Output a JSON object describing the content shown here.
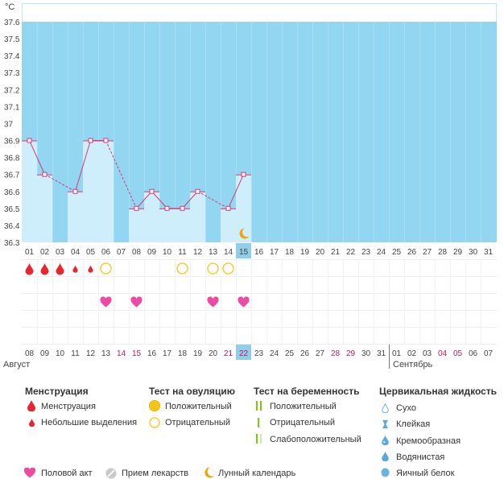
{
  "chart_data": {
    "type": "bar",
    "unit_label": "°C",
    "ylim": [
      36.3,
      37.6
    ],
    "yticks": [
      "36.3",
      "36.4",
      "36.5",
      "36.6",
      "36.7",
      "36.8",
      "36.9",
      "37",
      "37.1",
      "37.2",
      "37.3",
      "37.4",
      "37.5",
      "37.6"
    ],
    "days": [
      "01",
      "02",
      "03",
      "04",
      "05",
      "06",
      "07",
      "08",
      "09",
      "10",
      "11",
      "12",
      "13",
      "14",
      "15",
      "16",
      "17",
      "18",
      "19",
      "20",
      "21",
      "22",
      "23",
      "24",
      "25",
      "26",
      "27",
      "28",
      "29",
      "30",
      "31"
    ],
    "current_day": "15",
    "temperatures": [
      36.9,
      36.7,
      null,
      36.6,
      36.9,
      36.9,
      null,
      36.5,
      36.6,
      36.5,
      36.5,
      36.6,
      null,
      36.5,
      36.7
    ],
    "menstruation": [
      1,
      1,
      1,
      2,
      2
    ],
    "ovulation_test_negative": [
      6,
      11,
      13,
      14
    ],
    "intercourse": [
      6,
      8,
      13,
      15
    ],
    "lunar": [
      15
    ],
    "dates": [
      "08",
      "09",
      "10",
      "11",
      "12",
      "13",
      "14",
      "15",
      "16",
      "17",
      "18",
      "19",
      "20",
      "21",
      "22",
      "23",
      "24",
      "25",
      "26",
      "27",
      "28",
      "29",
      "30",
      "31",
      "01",
      "02",
      "03",
      "04",
      "05",
      "06",
      "07"
    ],
    "weekend_dates": [
      6,
      7,
      13,
      14,
      20,
      21,
      27,
      28
    ],
    "month_left": "Август",
    "month_right": "Сентябрь"
  },
  "legend": {
    "menstruation": {
      "title": "Менструация",
      "items": [
        "Менструация",
        "Небольшие выделения"
      ]
    },
    "ovulation": {
      "title": "Тест на овуляцию",
      "items": [
        "Положительный",
        "Отрицательный"
      ]
    },
    "pregnancy": {
      "title": "Тест на беременность",
      "items": [
        "Положительный",
        "Отрицательный",
        "Слабоположительный"
      ]
    },
    "cervical": {
      "title": "Цервикальная жидкость",
      "items": [
        "Сухо",
        "Клейкая",
        "Кремообразная",
        "Водянистая",
        "Яичный белок"
      ]
    },
    "bottom": [
      "Половой акт",
      "Прием лекарств",
      "Лунный календарь"
    ]
  },
  "colors": {
    "sky": "#92d6f2",
    "bar": "#cfeefb",
    "line": "#d63a73",
    "blood": "#e8262f",
    "heart": "#ef4aa3",
    "ovu": "#f6c515",
    "preg": "#8bbd2c",
    "weekend": "#c8175d",
    "today": "#8fcfea"
  }
}
